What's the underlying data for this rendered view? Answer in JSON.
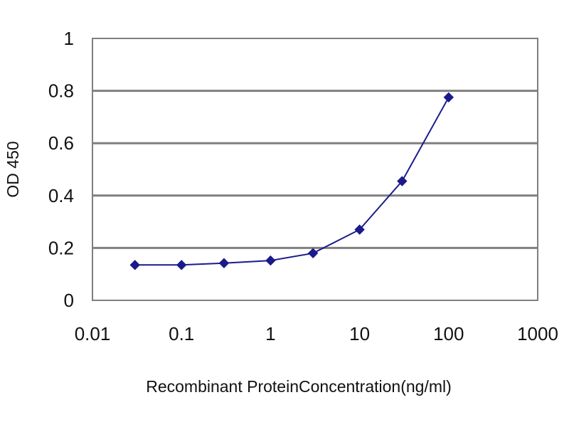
{
  "chart_data": {
    "type": "line",
    "xlabel": "Recombinant ProteinConcentration(ng/ml)",
    "ylabel": "OD 450",
    "xscale": "log",
    "xlim": [
      0.01,
      1000
    ],
    "ylim": [
      0,
      1
    ],
    "xticks": [
      "0.01",
      "0.1",
      "1",
      "10",
      "100",
      "1000"
    ],
    "yticks": [
      "0",
      "0.2",
      "0.4",
      "0.6",
      "0.8",
      "1"
    ],
    "grid": "horizontal",
    "series": [
      {
        "color": "#1a1a8c",
        "marker": "diamond",
        "x": [
          0.03,
          0.1,
          0.3,
          1,
          3,
          10,
          30,
          100
        ],
        "y": [
          0.135,
          0.135,
          0.142,
          0.152,
          0.18,
          0.27,
          0.455,
          0.775
        ]
      }
    ]
  }
}
